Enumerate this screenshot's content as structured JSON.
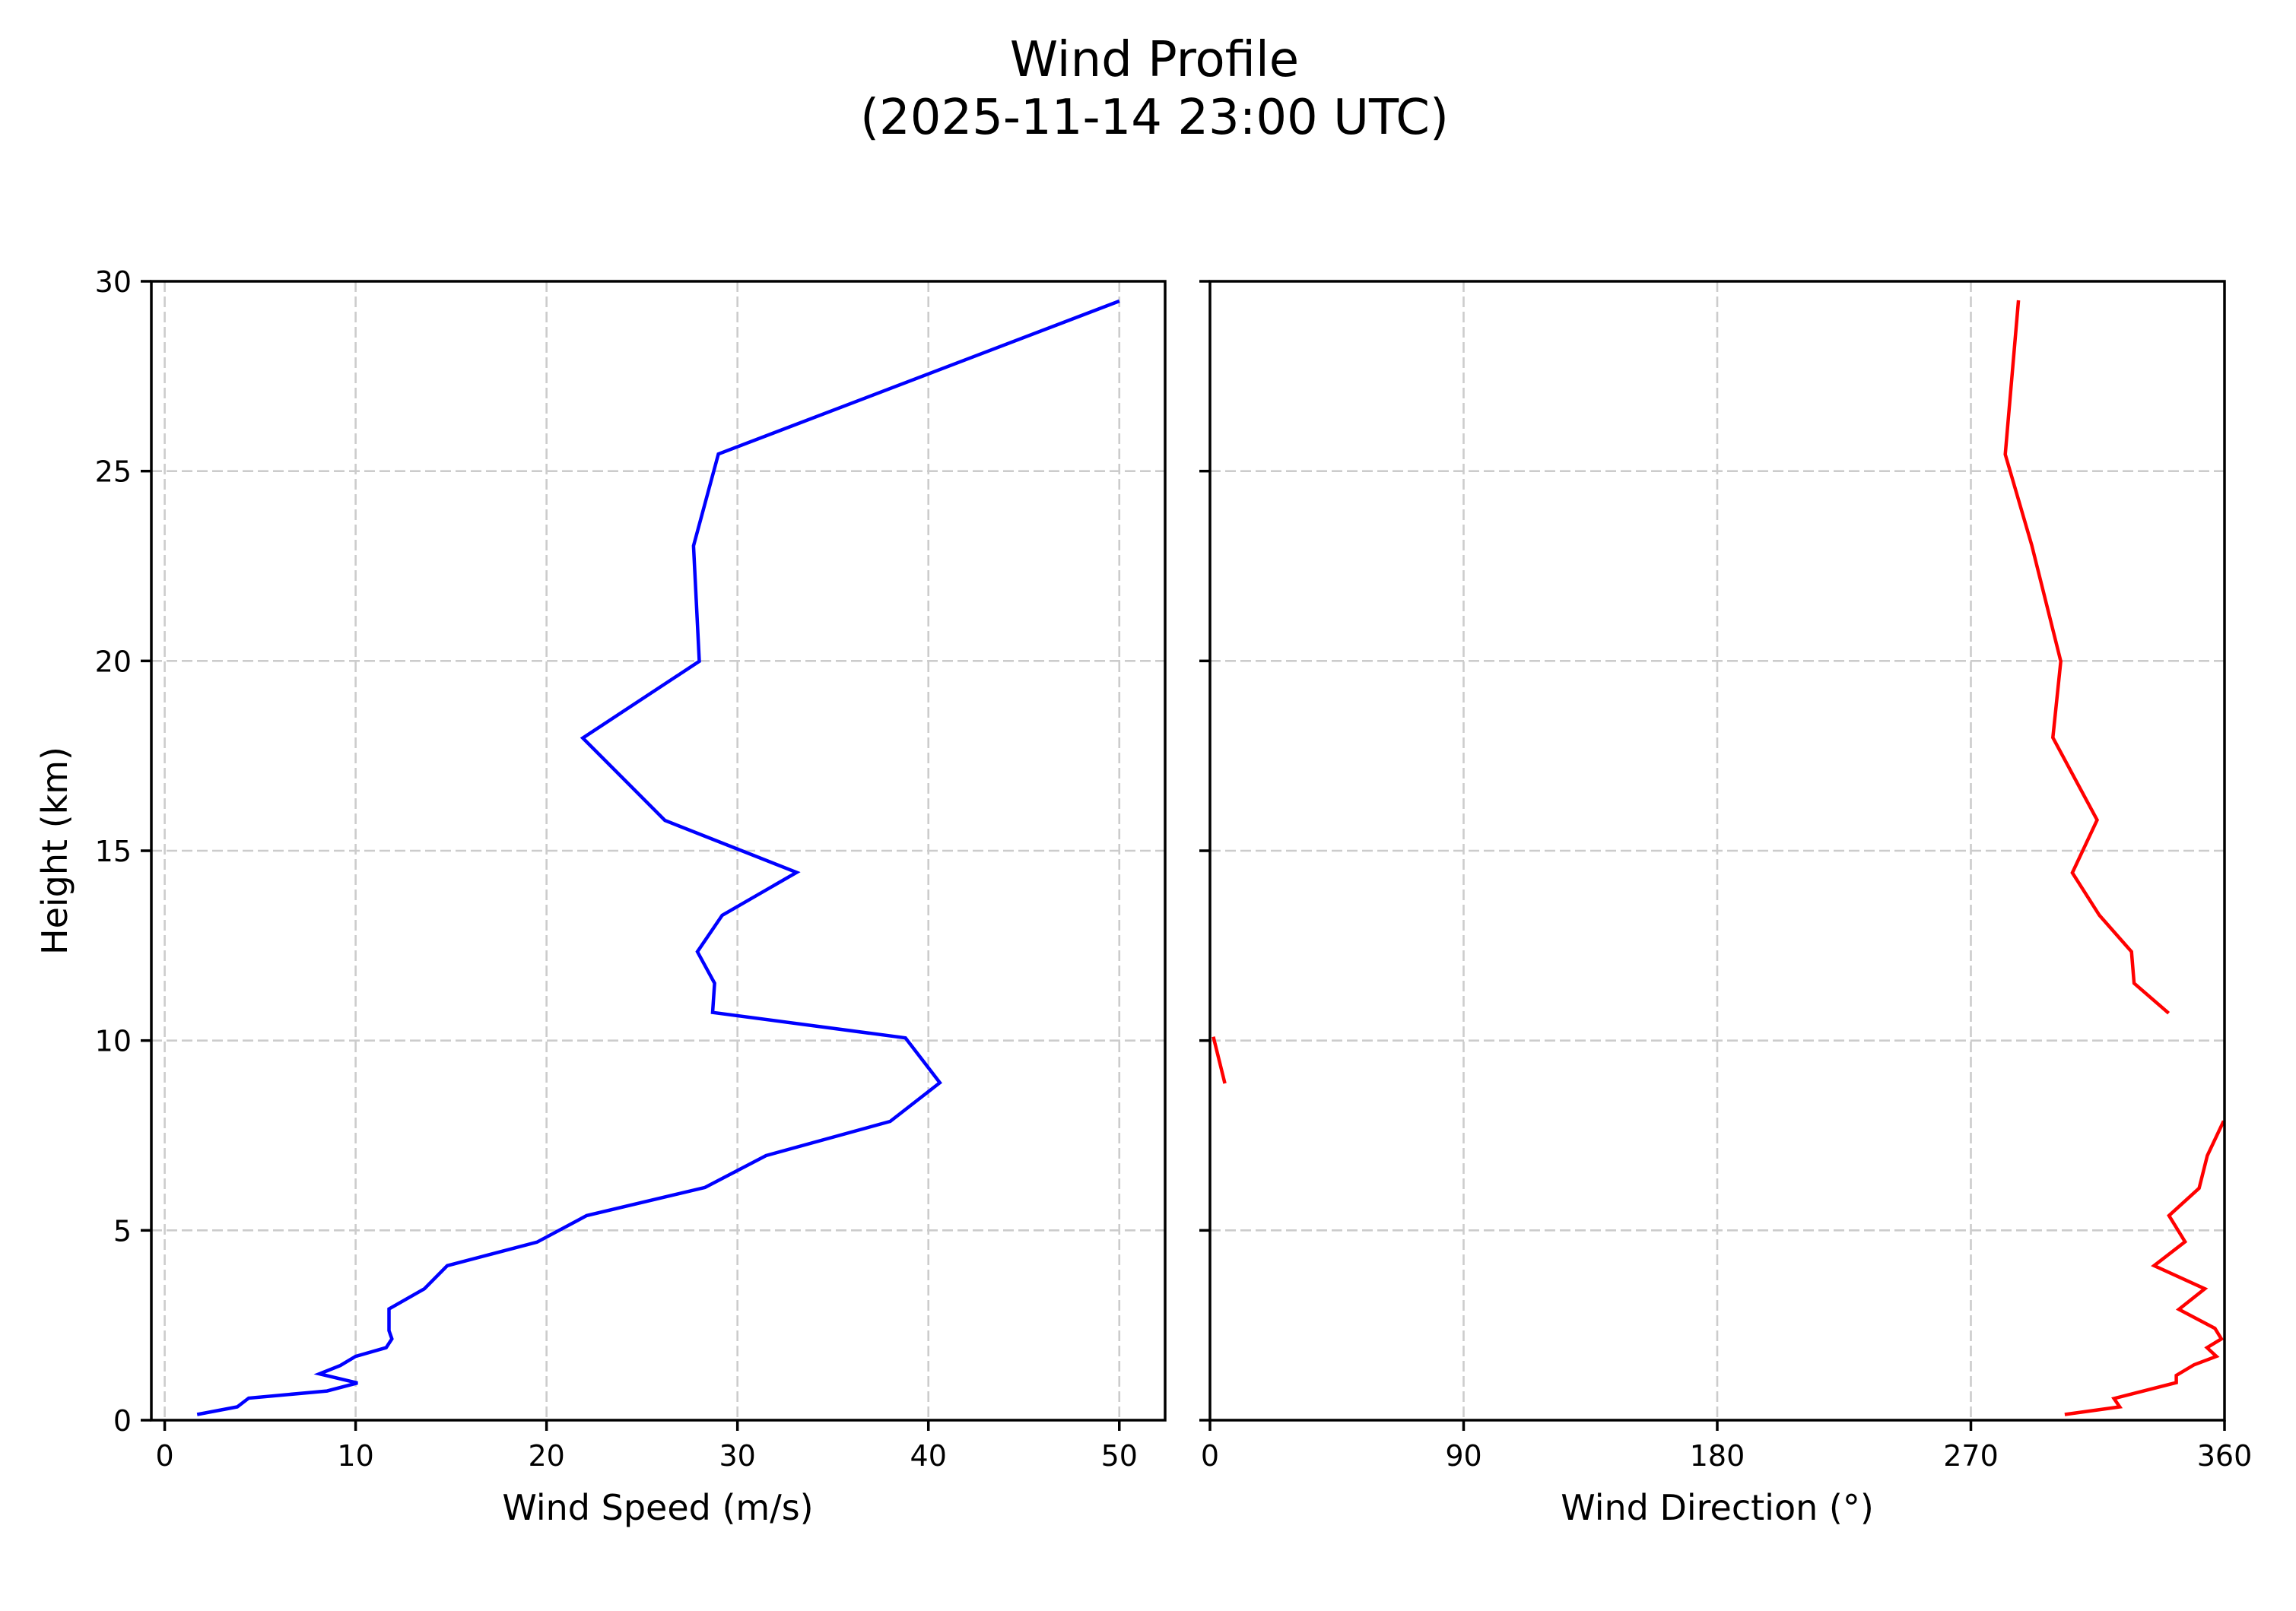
{
  "figure": {
    "title_line1": "Wind Profile",
    "title_line2": "(2025-11-14 23:00 UTC)"
  },
  "panels": {
    "speed": {
      "xlabel": "Wind Speed (m/s)",
      "ylabel": "Height (km)",
      "xticks": [
        "0",
        "10",
        "20",
        "30",
        "40",
        "50"
      ],
      "yticks": [
        "0",
        "5",
        "10",
        "15",
        "20",
        "25",
        "30"
      ],
      "line_color": "#0000ff"
    },
    "direction": {
      "xlabel": "Wind Direction (°)",
      "xticks": [
        "0",
        "90",
        "180",
        "270",
        "360"
      ],
      "line_color": "#ff0000"
    }
  },
  "chart_data": [
    {
      "type": "line",
      "title": "Wind Profile (2025-11-14 23:00 UTC)",
      "xlabel": "Wind Speed (m/s)",
      "ylabel": "Height (km)",
      "xlim": [
        -0.7,
        52.4
      ],
      "ylim": [
        0,
        30
      ],
      "xticks": [
        0,
        10,
        20,
        30,
        40,
        50
      ],
      "yticks": [
        0,
        5,
        10,
        15,
        20,
        25,
        30
      ],
      "grid": true,
      "series": [
        {
          "name": "Wind Speed",
          "color": "#0000ff",
          "x": [
            1.7,
            3.8,
            4.4,
            8.5,
            10.1,
            8.1,
            9.2,
            10.0,
            11.6,
            11.9,
            11.75,
            11.75,
            13.6,
            14.8,
            19.5,
            22.1,
            28.3,
            31.5,
            38.0,
            40.6,
            38.8,
            28.7,
            28.8,
            27.9,
            29.2,
            33.1,
            26.2,
            21.9,
            28.0,
            27.7,
            29.0,
            50.0
          ],
          "y": [
            0.15,
            0.35,
            0.58,
            0.77,
            0.98,
            1.22,
            1.44,
            1.68,
            1.91,
            2.14,
            2.36,
            2.93,
            3.46,
            4.07,
            4.69,
            5.39,
            6.13,
            6.97,
            7.87,
            8.89,
            10.07,
            10.74,
            11.51,
            12.34,
            13.3,
            14.43,
            15.8,
            17.97,
            19.99,
            23.03,
            25.45,
            29.48
          ]
        }
      ]
    },
    {
      "type": "line",
      "title": "",
      "xlabel": "Wind Direction (°)",
      "ylabel": "",
      "xlim": [
        0,
        360
      ],
      "ylim": [
        0,
        30
      ],
      "xticks": [
        0,
        90,
        180,
        270,
        360
      ],
      "yticks": [
        0,
        5,
        10,
        15,
        20,
        25,
        30
      ],
      "grid": true,
      "series": [
        {
          "name": "Wind Direction",
          "color": "#ff0000",
          "x": [
            303.3,
            322.8,
            320.8,
            342.9,
            342.9,
            349.2,
            357.1,
            353.8,
            358.9,
            356.6,
            343.8,
            353.0,
            335.0,
            346.0,
            340.3,
            351.0,
            353.9,
            359.7,
            null,
            5.3,
            1.2,
            null,
            340.2,
            327.9,
            327.0,
            315.6,
            306.0,
            314.8,
            299.1,
            301.9,
            291.6,
            282.2,
            286.9
          ],
          "y": [
            0.15,
            0.35,
            0.57,
            0.99,
            1.18,
            1.46,
            1.68,
            1.91,
            2.14,
            2.42,
            2.92,
            3.46,
            4.07,
            4.7,
            5.39,
            6.11,
            6.97,
            7.88,
            null,
            8.87,
            10.1,
            null,
            10.72,
            11.51,
            12.34,
            13.3,
            14.42,
            15.81,
            17.98,
            19.99,
            23.05,
            25.44,
            29.5
          ]
        }
      ]
    }
  ]
}
